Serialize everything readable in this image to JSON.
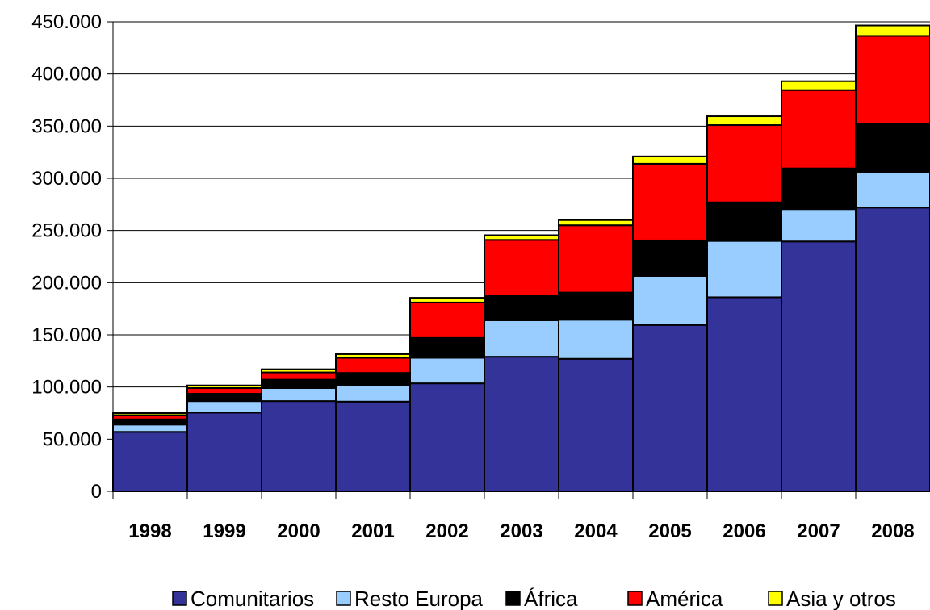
{
  "chart_data": {
    "type": "bar",
    "stacked": true,
    "categories": [
      "1998",
      "1999",
      "2000",
      "2001",
      "2002",
      "2003",
      "2004",
      "2005",
      "2006",
      "2007",
      "2008"
    ],
    "series": [
      {
        "name": "Comunitarios",
        "color": "#333399",
        "values": [
          57000,
          75500,
          86500,
          86000,
          103500,
          129000,
          127000,
          159500,
          186000,
          239500,
          272000
        ]
      },
      {
        "name": "Resto Europa",
        "color": "#99CCFF",
        "values": [
          7000,
          11000,
          12500,
          15500,
          24500,
          35000,
          37500,
          47000,
          54000,
          31000,
          34000
        ]
      },
      {
        "name": "África",
        "color": "#000000",
        "values": [
          5000,
          7000,
          8000,
          12000,
          19000,
          23500,
          26000,
          34000,
          37000,
          39000,
          46000
        ]
      },
      {
        "name": "América",
        "color": "#FF0000",
        "values": [
          4000,
          5500,
          7000,
          14500,
          34000,
          53500,
          64500,
          73500,
          74000,
          75000,
          84500
        ]
      },
      {
        "name": "Asia y otros",
        "color": "#FFFF00",
        "values": [
          2000,
          2500,
          3000,
          3500,
          4500,
          4500,
          5000,
          7000,
          8500,
          8500,
          10000
        ]
      }
    ],
    "y_ticks": [
      "0",
      "50.000",
      "100.000",
      "150.000",
      "200.000",
      "250.000",
      "300.000",
      "350.000",
      "400.000",
      "450.000"
    ],
    "ylim": [
      0,
      450000
    ],
    "grid": true,
    "legend_position": "bottom"
  }
}
